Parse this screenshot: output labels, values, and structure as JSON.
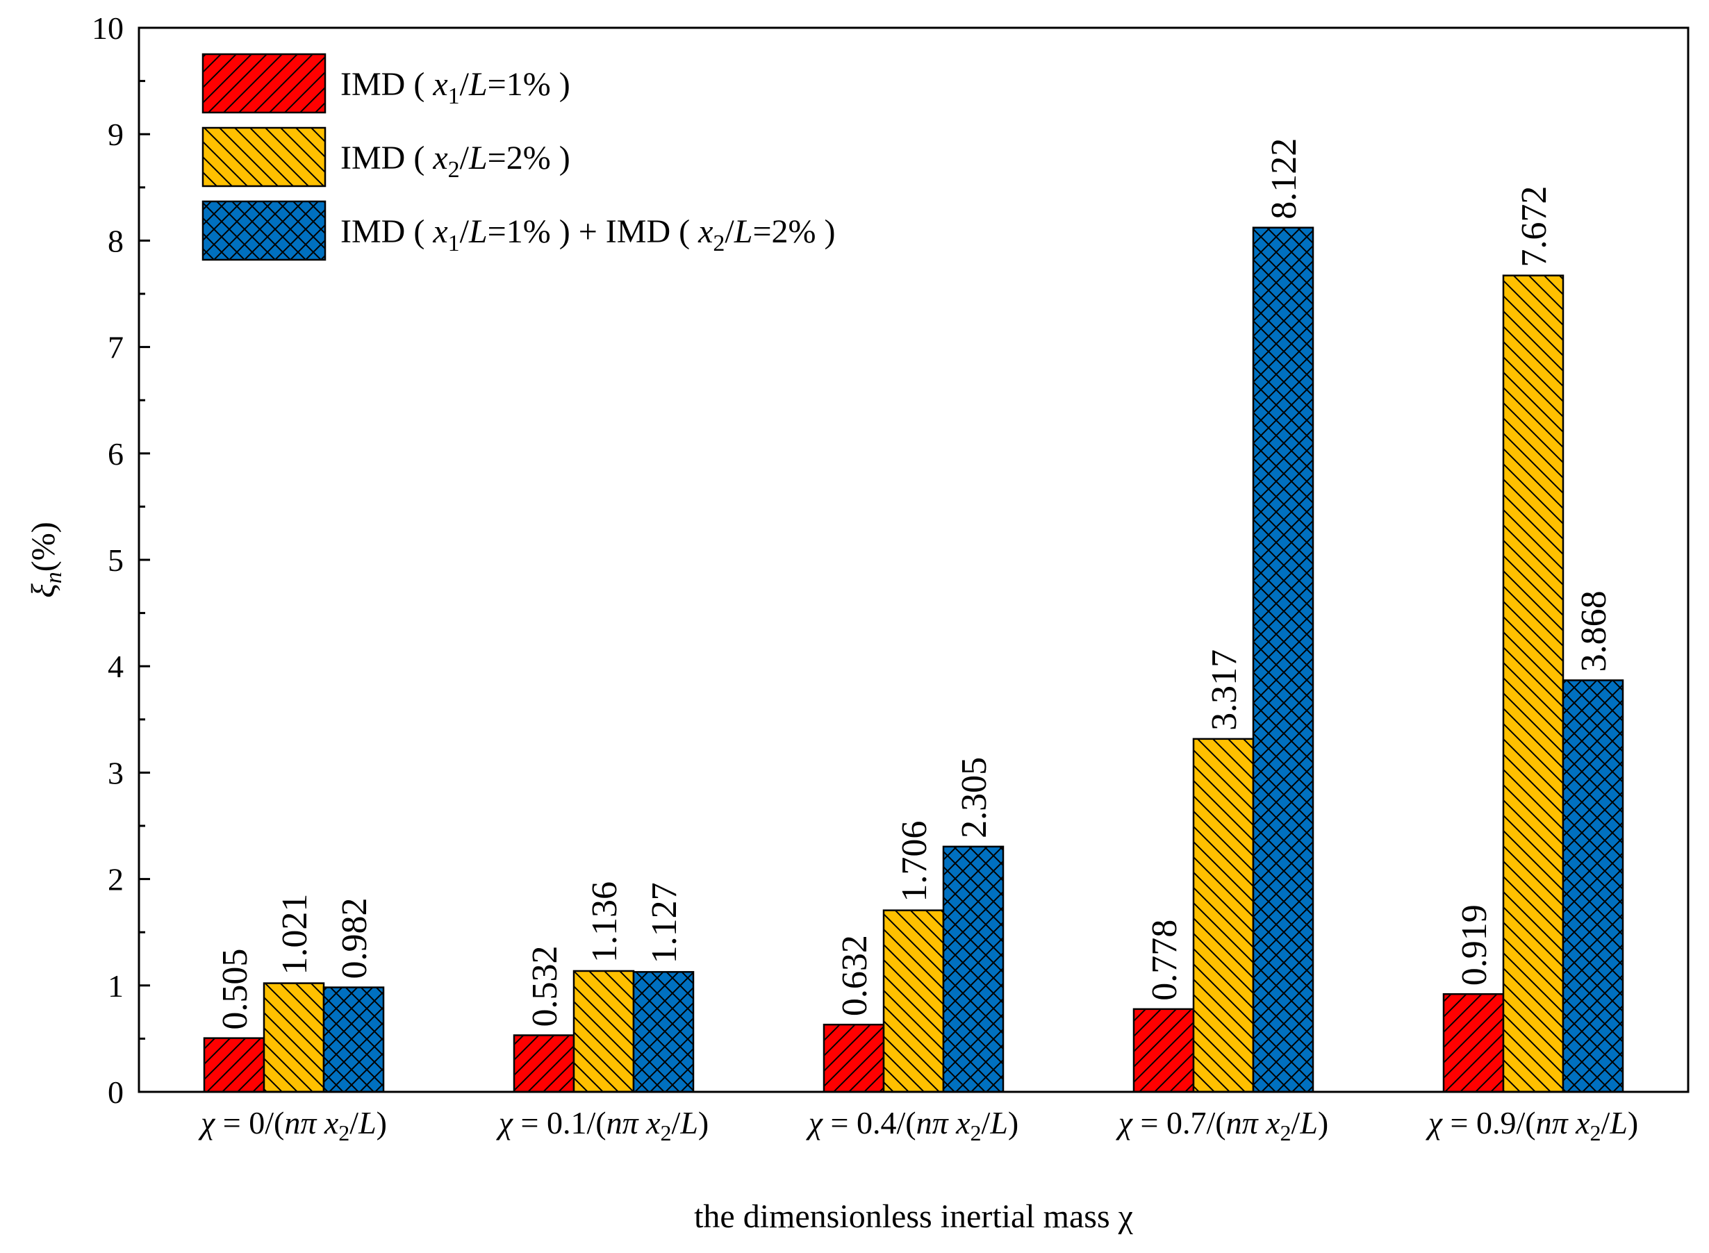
{
  "chart_data": {
    "type": "bar",
    "title": "",
    "xlabel": "the dimensionless inertial mass χ",
    "ylabel": "ξn(%)",
    "ylabel_symbol": "ξ",
    "ylabel_sub": "n",
    "ylabel_unit": "(%)",
    "ylim": [
      0,
      10
    ],
    "yticks": [
      "0",
      "1",
      "2",
      "3",
      "4",
      "5",
      "6",
      "7",
      "8",
      "9",
      "10"
    ],
    "categories": [
      "χ = 0/(nπ x2/L)",
      "χ = 0.1/(nπ x2/L)",
      "χ = 0.4/(nπ x2/L)",
      "χ = 0.7/(nπ x2/L)",
      "χ = 0.9/(nπ x2/L)"
    ],
    "category_values": [
      "0",
      "0.1",
      "0.4",
      "0.7",
      "0.9"
    ],
    "series": [
      {
        "name": "IMD ( x1/L=1% )",
        "label_parts": [
          "IMD ( ",
          "x",
          "1",
          "/",
          "L",
          "=1% )"
        ],
        "color": "#ff0000",
        "pattern": "diagonal-up",
        "values": [
          0.505,
          0.532,
          0.632,
          0.778,
          0.919
        ],
        "labels": [
          "0.505",
          "0.532",
          "0.632",
          "0.778",
          "0.919"
        ]
      },
      {
        "name": "IMD ( x2/L=2% )",
        "label_parts": [
          "IMD ( ",
          "x",
          "2",
          "/",
          "L",
          "=2% )"
        ],
        "color": "#ffc000",
        "pattern": "diagonal-down",
        "values": [
          1.021,
          1.136,
          1.706,
          3.317,
          7.672
        ],
        "labels": [
          "1.021",
          "1.136",
          "1.706",
          "3.317",
          "7.672"
        ]
      },
      {
        "name": "IMD ( x1/L=1% ) + IMD ( x2/L=2% )",
        "label_parts": [
          "IMD ( ",
          "x",
          "1",
          "/",
          "L",
          "=1% ) + IMD ( ",
          "x",
          "2",
          "/",
          "L",
          "=2% )"
        ],
        "color": "#0070c0",
        "pattern": "crosshatch",
        "values": [
          0.982,
          1.127,
          2.305,
          8.122,
          3.868
        ],
        "labels": [
          "0.982",
          "1.127",
          "2.305",
          "8.122",
          "3.868"
        ]
      }
    ],
    "legend_position": "top-left",
    "grid": false
  }
}
